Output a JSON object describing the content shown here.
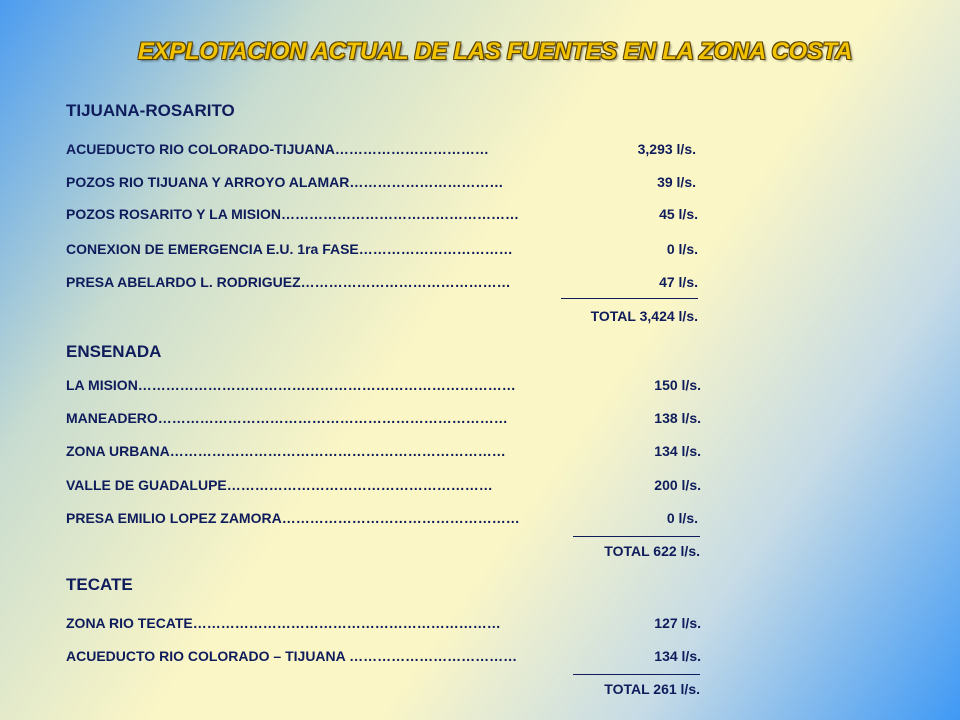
{
  "title": "EXPLOTACION ACTUAL DE LAS FUENTES EN LA ZONA COSTA",
  "sections": [
    {
      "name": "TIJUANA-ROSARITO",
      "rows": [
        {
          "label": "ACUEDUCTO  RIO COLORADO-TIJUANA……………………………",
          "value": "3,293 l/s."
        },
        {
          "label": "POZOS RIO TIJUANA Y ARROYO  ALAMAR……………………………",
          "value": "39 l/s."
        },
        {
          "label": "POZOS ROSARITO  Y LA MISION……………………………………………",
          "value": "45 l/s."
        },
        {
          "label": "CONEXION  DE  EMERGENCIA  E.U.  1ra FASE……………………………",
          "value": "0 l/s."
        },
        {
          "label": "PRESA ABELARDO  L. RODRIGUEZ………………………………………",
          "value": "47 l/s."
        }
      ],
      "total": "TOTAL  3,424 l/s."
    },
    {
      "name": "ENSENADA",
      "rows": [
        {
          "label": "LA MISION………………………………………………………………………",
          "value": "150 l/s."
        },
        {
          "label": "MANEADERO…………………………………………………………………",
          "value": "138 l/s."
        },
        {
          "label": "ZONA URBANA………………………………………………………………",
          "value": "134 l/s."
        },
        {
          "label": "VALLE DE GUADALUPE…………………………………………………",
          "value": "200 l/s."
        },
        {
          "label": "PRESA EMILIO LOPEZ ZAMORA……………………………………………",
          "value": "0 l/s."
        }
      ],
      "total": "TOTAL   622 l/s."
    },
    {
      "name": "TECATE",
      "rows": [
        {
          "label": "ZONA RIO TECATE…………………………………………………………",
          "value": "127 l/s."
        },
        {
          "label": "ACUEDUCTO  RIO COLORADO  – TIJUANA ………………………………",
          "value": "134 l/s."
        }
      ],
      "total": "TOTAL   261 l/s."
    }
  ]
}
